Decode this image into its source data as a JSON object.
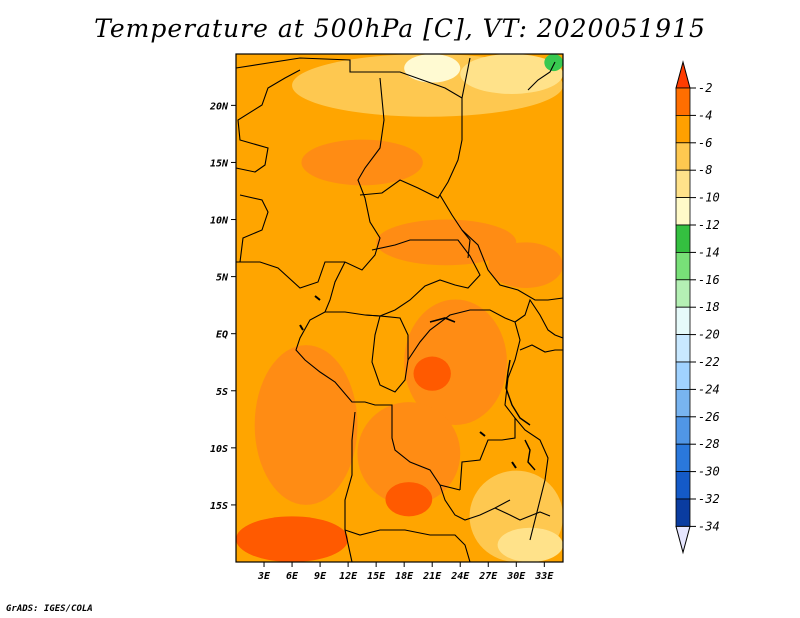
{
  "title": "Temperature at 500hPa [C], VT: 2020051915",
  "credit": "GrADS: IGES/COLA",
  "map": {
    "lon_range": [
      0,
      35
    ],
    "lat_range": [
      -20,
      24.5
    ],
    "lat_ticks": [
      {
        "value": 20,
        "label": "20N"
      },
      {
        "value": 15,
        "label": "15N"
      },
      {
        "value": 10,
        "label": "10N"
      },
      {
        "value": 5,
        "label": "5N"
      },
      {
        "value": 0,
        "label": "EQ"
      },
      {
        "value": -5,
        "label": "5S"
      },
      {
        "value": -10,
        "label": "10S"
      },
      {
        "value": -15,
        "label": "15S"
      }
    ],
    "lon_ticks": [
      {
        "value": 3,
        "label": "3E"
      },
      {
        "value": 6,
        "label": "6E"
      },
      {
        "value": 9,
        "label": "9E"
      },
      {
        "value": 12,
        "label": "12E"
      },
      {
        "value": 15,
        "label": "15E"
      },
      {
        "value": 18,
        "label": "18E"
      },
      {
        "value": 21,
        "label": "21E"
      },
      {
        "value": 24,
        "label": "24E"
      },
      {
        "value": 27,
        "label": "27E"
      },
      {
        "value": 30,
        "label": "30E"
      },
      {
        "value": 33,
        "label": "33E"
      }
    ],
    "background_color": "#ffa500",
    "regions": [
      {
        "name": "north-light-band",
        "color": "#fec850",
        "lon": [
          6,
          35
        ],
        "lat": [
          19,
          24.5
        ]
      },
      {
        "name": "northeast-yellow",
        "color": "#ffe28a",
        "lon": [
          24,
          35
        ],
        "lat": [
          21,
          24.5
        ]
      },
      {
        "name": "top-white",
        "color": "#fffad2",
        "lon": [
          18,
          24
        ],
        "lat": [
          22,
          24.5
        ]
      },
      {
        "name": "ne-green-spot",
        "color": "#38c850",
        "lon": [
          33,
          35
        ],
        "lat": [
          23,
          24.5
        ]
      },
      {
        "name": "sahel-warm",
        "color": "#ff8c14",
        "lon": [
          7,
          20
        ],
        "lat": [
          13,
          17
        ]
      },
      {
        "name": "central-warm",
        "color": "#ff8c14",
        "lon": [
          15,
          30
        ],
        "lat": [
          6,
          10
        ]
      },
      {
        "name": "east-warm",
        "color": "#ff8c14",
        "lon": [
          27,
          35
        ],
        "lat": [
          4,
          8
        ]
      },
      {
        "name": "congo-warm",
        "color": "#ff8c14",
        "lon": [
          18,
          29
        ],
        "lat": [
          -8,
          3
        ]
      },
      {
        "name": "congo-hot",
        "color": "#ff5a00",
        "lon": [
          19,
          23
        ],
        "lat": [
          -5,
          -2
        ]
      },
      {
        "name": "atlantic-warm",
        "color": "#ff8c14",
        "lon": [
          2,
          13
        ],
        "lat": [
          -15,
          -1
        ]
      },
      {
        "name": "angola-warm",
        "color": "#ff8c14",
        "lon": [
          13,
          24
        ],
        "lat": [
          -15,
          -6
        ]
      },
      {
        "name": "angola-hot",
        "color": "#ff5a00",
        "lon": [
          16,
          21
        ],
        "lat": [
          -16,
          -13
        ]
      },
      {
        "name": "southwest-hot",
        "color": "#ff5a00",
        "lon": [
          0,
          12
        ],
        "lat": [
          -20,
          -16
        ]
      },
      {
        "name": "southeast-light",
        "color": "#fec850",
        "lon": [
          25,
          35
        ],
        "lat": [
          -20,
          -12
        ]
      },
      {
        "name": "southeast-yellow",
        "color": "#ffe28a",
        "lon": [
          28,
          35
        ],
        "lat": [
          -20,
          -17
        ]
      }
    ]
  },
  "colorbar": {
    "levels": [
      "-2",
      "-4",
      "-6",
      "-8",
      "-10",
      "-12",
      "-14",
      "-16",
      "-18",
      "-20",
      "-22",
      "-24",
      "-26",
      "-28",
      "-30",
      "-32",
      "-34"
    ],
    "colors": [
      "#ff3c00",
      "#ff6e00",
      "#ffa000",
      "#fec850",
      "#ffe28a",
      "#fffac8",
      "#34c040",
      "#78e078",
      "#b4f0b4",
      "#e6fafa",
      "#c8e8ff",
      "#a0d2ff",
      "#78b4f0",
      "#5096e6",
      "#2a78dc",
      "#145ac8",
      "#0a3ca0",
      "#0a0a78",
      "#e6e6ff"
    ]
  }
}
